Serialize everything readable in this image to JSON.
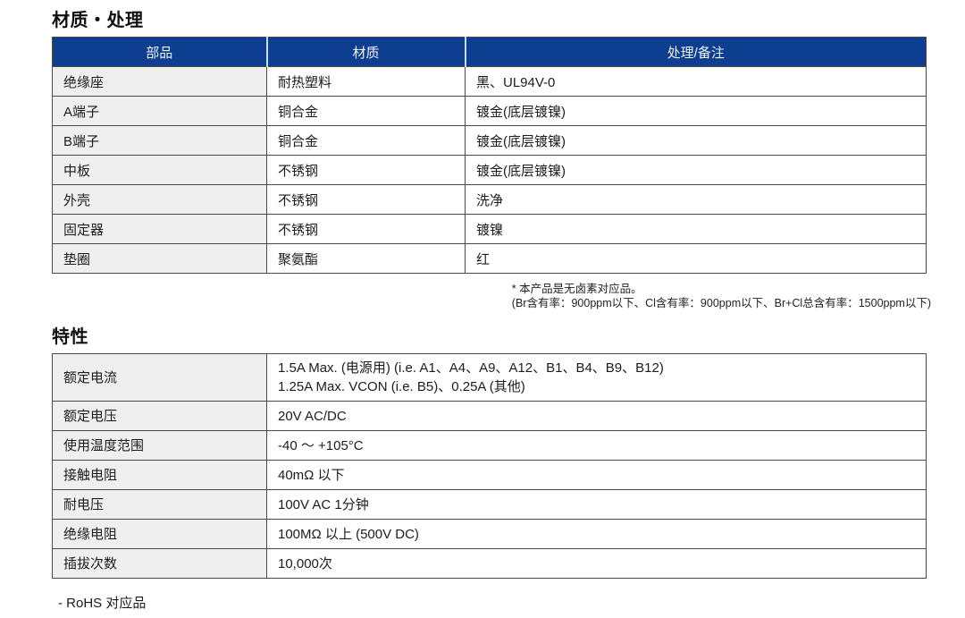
{
  "page": {
    "materials_section": {
      "title": "材质・处理",
      "table": {
        "headers": [
          "部品",
          "材质",
          "处理/备注"
        ],
        "rows": [
          [
            "绝缘座",
            "耐热塑料",
            "黑、UL94V-0"
          ],
          [
            "A端子",
            "铜合金",
            "镀金(底层镀镍)"
          ],
          [
            "B端子",
            "铜合金",
            "镀金(底层镀镍)"
          ],
          [
            "中板",
            "不锈钢",
            "镀金(底层镀镍)"
          ],
          [
            "外壳",
            "不锈钢",
            "洗净"
          ],
          [
            "固定器",
            "不锈钢",
            "镀镍"
          ],
          [
            "垫圈",
            "聚氨酯",
            "红"
          ]
        ]
      },
      "footnote_line1": "* 本产品是无卤素对应品。",
      "footnote_line2": "(Br含有率：900ppm以下、Cl含有率：900ppm以下、Br+Cl总含有率：1500ppm以下)"
    },
    "characteristics_section": {
      "title": "特性",
      "table": {
        "rows": [
          {
            "label": "额定电流",
            "lines": [
              "1.5A Max. (电源用) (i.e. A1、A4、A9、A12、B1、B4、B9、B12)",
              "1.25A Max. VCON (i.e. B5)、0.25A (其他)"
            ]
          },
          {
            "label": "额定电压",
            "lines": [
              "20V AC/DC"
            ]
          },
          {
            "label": "使用温度范围",
            "lines": [
              "-40 ～ +105°C"
            ]
          },
          {
            "label": "接触电阻",
            "lines": [
              "40mΩ 以下"
            ]
          },
          {
            "label": "耐电压",
            "lines": [
              "100V AC 1分钟"
            ]
          },
          {
            "label": "绝缘电阻",
            "lines": [
              "100MΩ 以上 (500V DC)"
            ]
          },
          {
            "label": "插拔次数",
            "lines": [
              "10,000次"
            ]
          }
        ]
      }
    },
    "bottom_note": "- RoHS 对应品"
  },
  "colors": {
    "header_bg": "#0d3e90",
    "header_text": "#eef3fb",
    "header_divider": "#c7dcef",
    "cell_border": "#4a4a4a",
    "label_column_bg": "#efefef",
    "value_column_bg": "#ffffff",
    "text": "#1c1c1c"
  }
}
